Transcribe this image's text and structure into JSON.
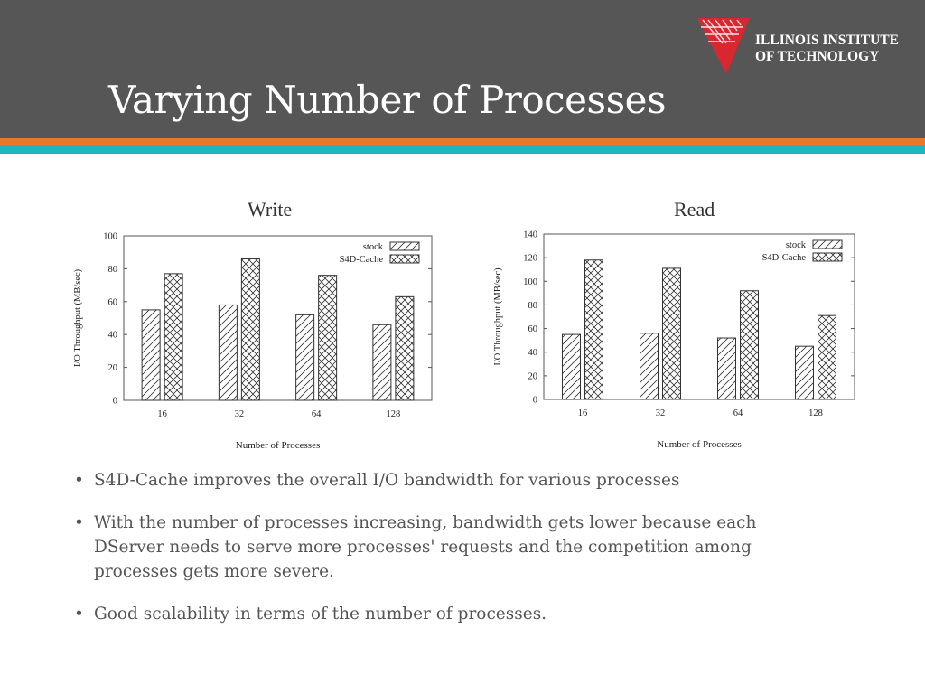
{
  "slide": {
    "title": "Varying Number of Processes",
    "logo_line1": "ILLINOIS INSTITUTE",
    "logo_line2": "OF TECHNOLOGY"
  },
  "bullets": [
    "S4D-Cache improves the overall I/O bandwidth for various processes",
    "With the number of processes increasing,  bandwidth gets lower because each DServer needs to serve more processes' requests and the competition among processes gets more severe.",
    "Good scalability in terms of the number of processes."
  ],
  "colors": {
    "header": "#565656",
    "orange": "#e8792b",
    "teal": "#1fb5c4",
    "logo_red": "#d8282f"
  },
  "chart_data": [
    {
      "type": "bar",
      "title": "Write",
      "categories": [
        "16",
        "32",
        "64",
        "128"
      ],
      "series": [
        {
          "name": "stock",
          "values": [
            55,
            58,
            52,
            46
          ],
          "pattern": "diagonal"
        },
        {
          "name": "S4D-Cache",
          "values": [
            77,
            86,
            76,
            63
          ],
          "pattern": "crosshatch"
        }
      ],
      "xlabel": "Number of Processes",
      "ylabel": "I/O Throughput (MB/sec)",
      "ylim": [
        0,
        100
      ],
      "yticks": [
        0,
        20,
        40,
        60,
        80,
        100
      ],
      "legend": "top-right",
      "grid": false
    },
    {
      "type": "bar",
      "title": "Read",
      "categories": [
        "16",
        "32",
        "64",
        "128"
      ],
      "series": [
        {
          "name": "stock",
          "values": [
            55,
            56,
            52,
            45
          ],
          "pattern": "diagonal"
        },
        {
          "name": "S4D-Cache",
          "values": [
            118,
            111,
            92,
            71
          ],
          "pattern": "crosshatch"
        }
      ],
      "xlabel": "Number of Processes",
      "ylabel": "I/O Throughput (MB/sec)",
      "ylim": [
        0,
        140
      ],
      "yticks": [
        0,
        20,
        40,
        60,
        80,
        100,
        120,
        140
      ],
      "legend": "top-right",
      "grid": false
    }
  ]
}
